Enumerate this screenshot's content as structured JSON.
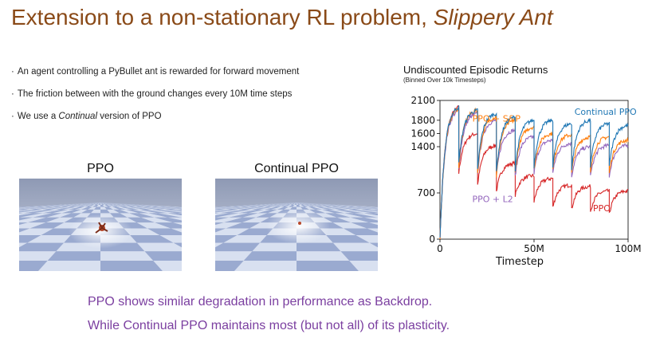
{
  "slide": {
    "title_main": "Extension to a non-stationary RL problem, ",
    "title_italic": "Slippery Ant",
    "title_color": "#8a4a18",
    "bullets": [
      {
        "pre": "An agent controlling a PyBullet ant is rewarded for forward movement",
        "em": "",
        "post": ""
      },
      {
        "pre": "The friction between with the ground changes every 10M time steps",
        "em": "",
        "post": ""
      },
      {
        "pre": "We use a ",
        "em": "Continual",
        "post": " version of PPO"
      }
    ],
    "scenes": [
      {
        "label": "PPO"
      },
      {
        "label": "Continual PPO"
      }
    ],
    "footer": [
      "PPO shows similar degradation in performance as Backdrop.",
      "While Continual PPO maintains most (but not all) of its plasticity."
    ],
    "footer_color": "#7b3fa0"
  },
  "chart_data": {
    "type": "line",
    "title": "Undiscounted Episodic Returns",
    "subtitle": "(Binned Over 10k Timesteps)",
    "xlabel": "Timestep",
    "ylabel": "",
    "xlim": [
      0,
      100
    ],
    "ylim": [
      0,
      2100
    ],
    "x_ticks": [
      {
        "v": 0,
        "label": "0"
      },
      {
        "v": 50,
        "label": "50M"
      },
      {
        "v": 100,
        "label": "100M"
      }
    ],
    "y_ticks": [
      {
        "v": 0,
        "label": "0"
      },
      {
        "v": 700,
        "label": "700"
      },
      {
        "v": 1400,
        "label": "1400"
      },
      {
        "v": 1600,
        "label": "1600"
      },
      {
        "v": 1800,
        "label": "1800"
      },
      {
        "v": 2100,
        "label": "2100"
      }
    ],
    "task_period": 10,
    "series": [
      {
        "name": "PPO",
        "color": "#d62728",
        "start": [
          0,
          1000,
          820,
          720,
          660,
          560,
          480,
          450,
          420,
          380
        ],
        "end": [
          2000,
          1600,
          1420,
          1150,
          960,
          920,
          820,
          800,
          730,
          730
        ]
      },
      {
        "name": "PPO + L2",
        "color": "#9467bd",
        "start": [
          0,
          1050,
          980,
          950,
          950,
          1000,
          1000,
          950,
          950,
          950
        ],
        "end": [
          1950,
          1900,
          1800,
          1650,
          1550,
          1500,
          1450,
          1400,
          1420,
          1420
        ]
      },
      {
        "name": "PPO + S&P",
        "color": "#ff7f0e",
        "start": [
          0,
          1100,
          1000,
          950,
          1000,
          1050,
          1050,
          1000,
          1000,
          1000
        ],
        "end": [
          1980,
          1950,
          1850,
          1800,
          1700,
          1600,
          1580,
          1550,
          1550,
          1500
        ]
      },
      {
        "name": "Continual PPO",
        "color": "#1f77b4",
        "start": [
          0,
          1150,
          1050,
          1000,
          1050,
          1100,
          1100,
          1050,
          1100,
          1100
        ],
        "end": [
          2000,
          1950,
          1900,
          1850,
          1800,
          1800,
          1750,
          1800,
          1750,
          1720
        ]
      }
    ],
    "annotations": [
      {
        "text": "Continual PPO",
        "series": "Continual PPO"
      },
      {
        "text": "PPO + S&P",
        "series": "PPO + S&P"
      },
      {
        "text": "PPO + L2",
        "series": "PPO + L2"
      },
      {
        "text": "PPO",
        "series": "PPO"
      }
    ]
  }
}
